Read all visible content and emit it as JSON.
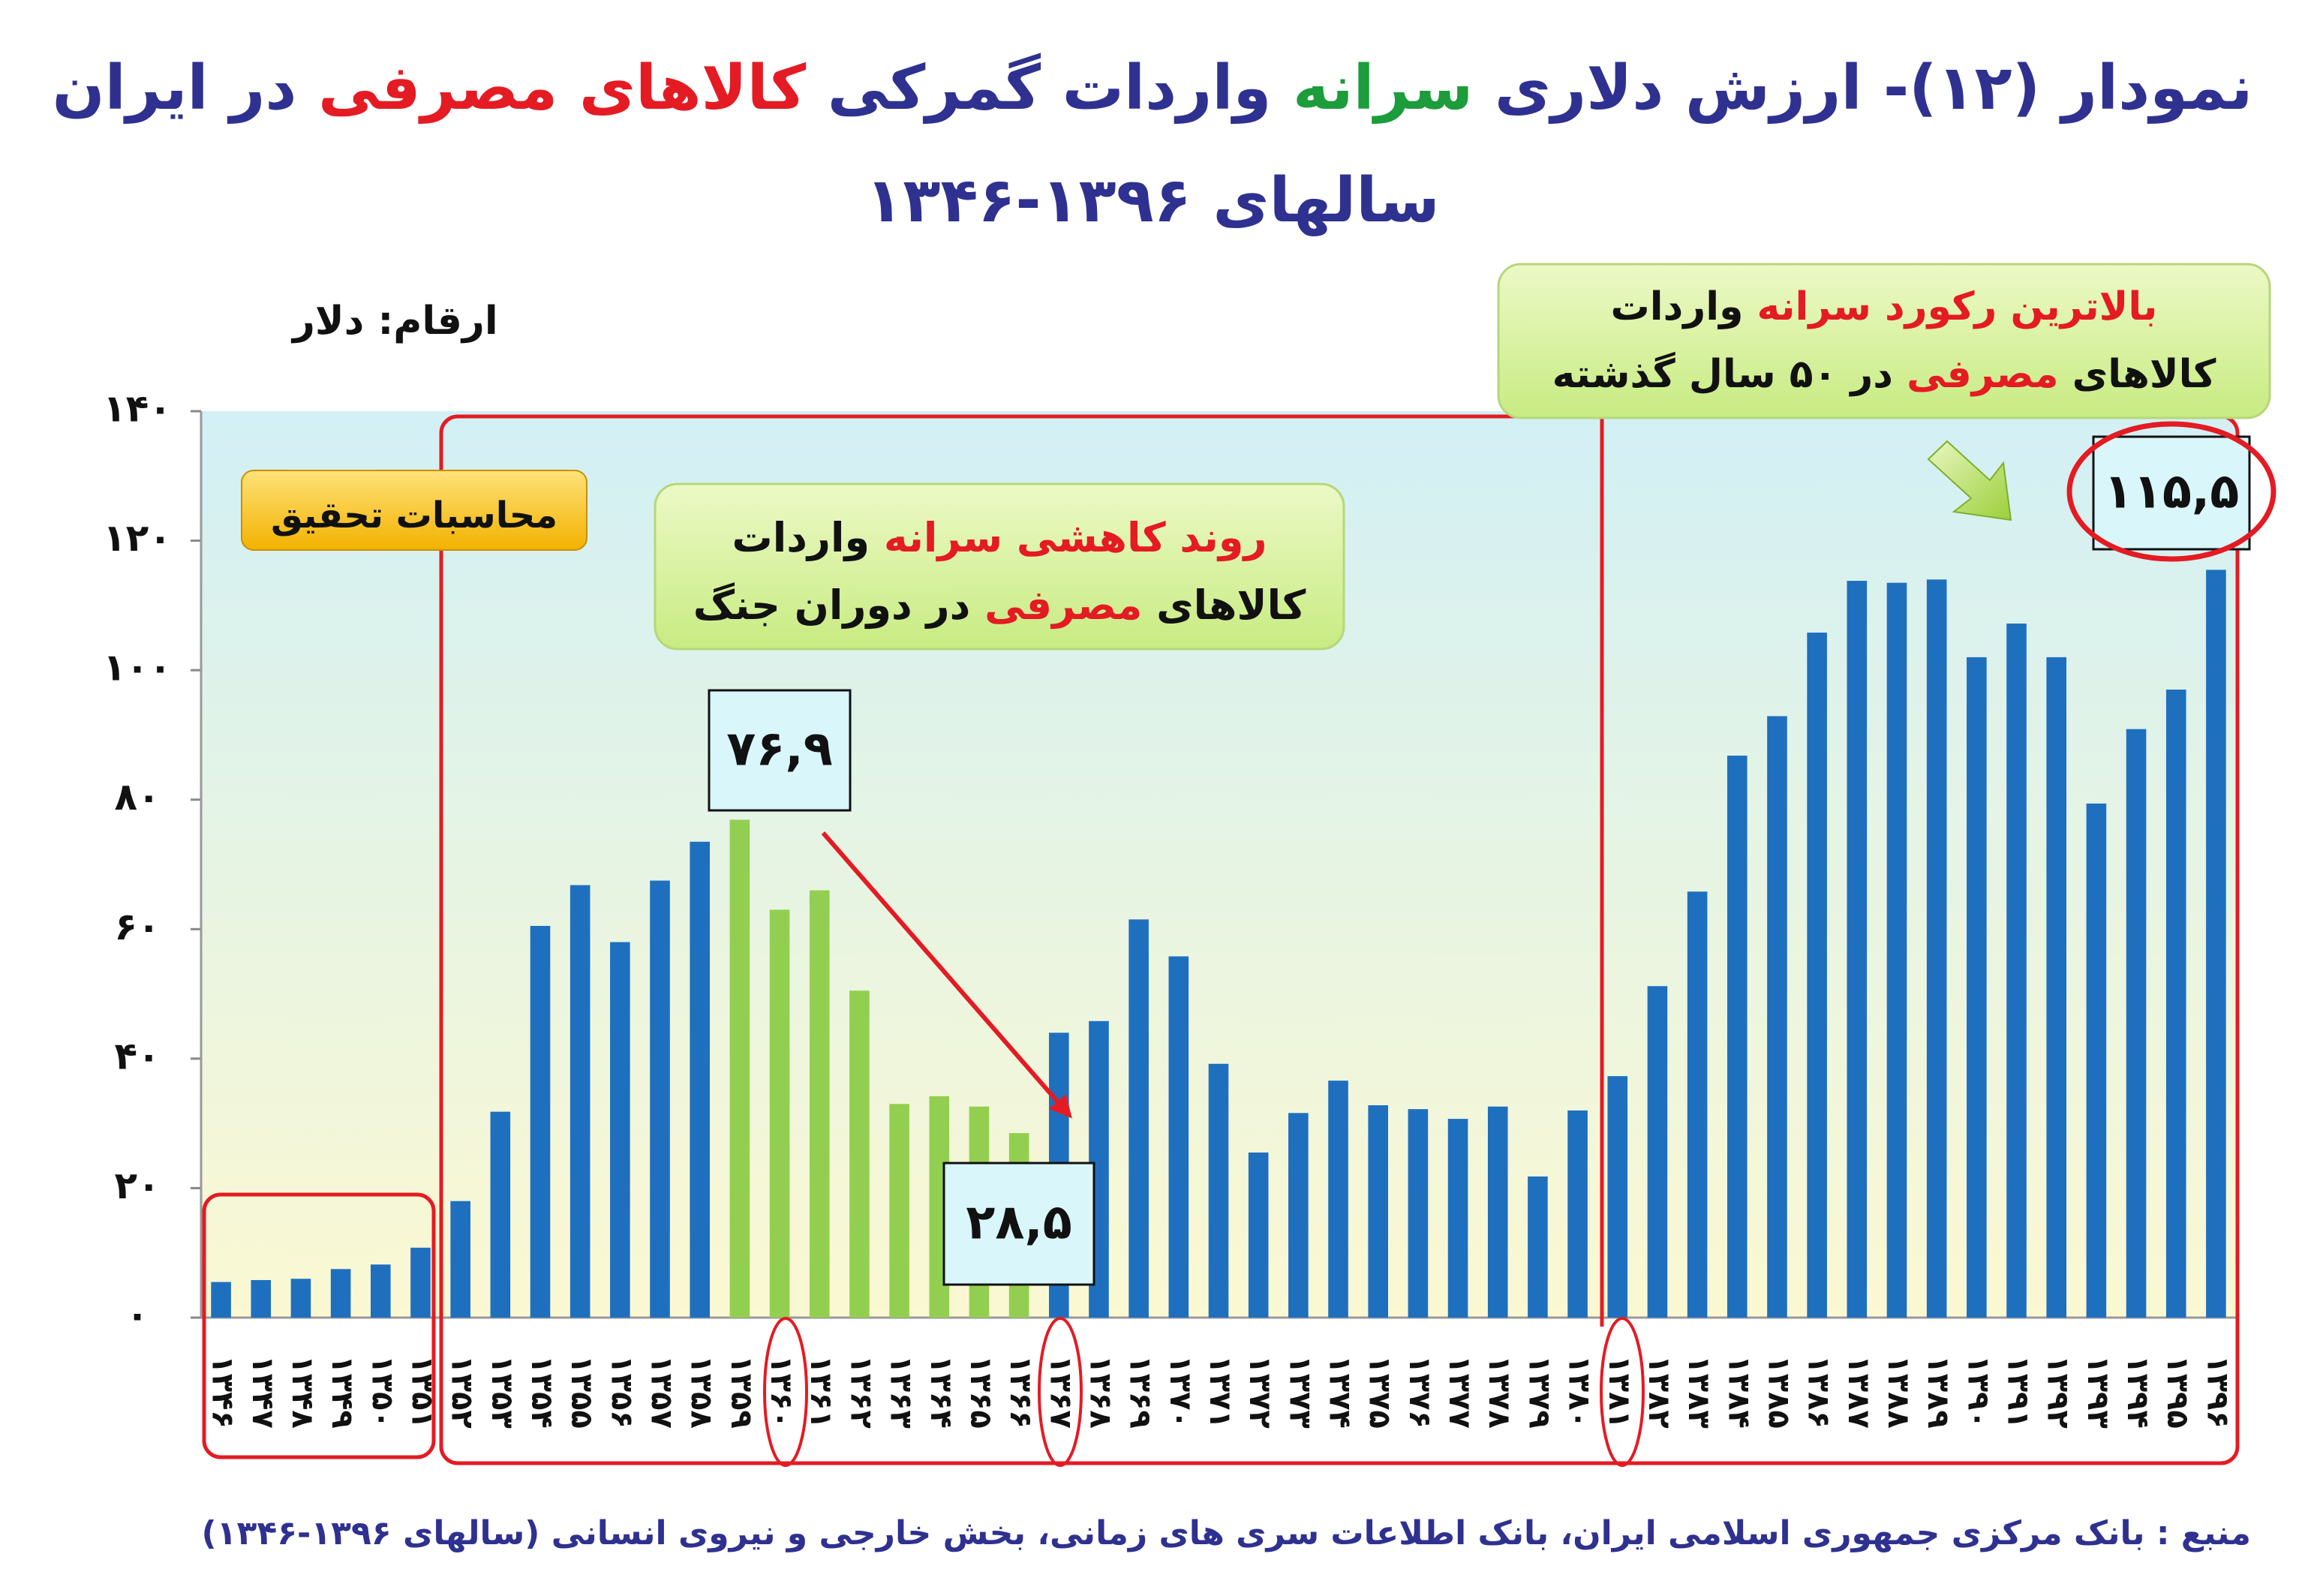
{
  "title": {
    "part1": "نمودار (۱۲)- ارزش دلاری ",
    "part2": "سرانه",
    "part3": " واردات گمرکی ",
    "part4": "کالاهای مصرفی",
    "part5": " در ایران",
    "line2": "سالهای ۱۳۹۶-۱۳۴۶"
  },
  "unit_label": "ارقام: دلار",
  "source": "منبع : بانک مرکزی جمهوری اسلامی ایران، بانک اطلاعات سری های زمانی، بخش خارجی و نیروی انسانی (سالهای ۱۳۹۶-۱۳۴۶)",
  "annotations": {
    "research_tag": "محاسبات تحقیق",
    "war_box": [
      [
        {
          "t": "روند کاهشی سرانه",
          "c": "#e41b23"
        },
        {
          "t": " واردات",
          "c": "#111111"
        }
      ],
      [
        {
          "t": "کالاهای ",
          "c": "#111111"
        },
        {
          "t": "مصرفی",
          "c": "#e41b23"
        },
        {
          "t": " در دوران جنگ",
          "c": "#111111"
        }
      ]
    ],
    "record_box": [
      [
        {
          "t": "بالاترین رکورد سرانه",
          "c": "#e41b23"
        },
        {
          "t": " واردات",
          "c": "#111111"
        }
      ],
      [
        {
          "t": "کالاهای ",
          "c": "#111111"
        },
        {
          "t": "مصرفی",
          "c": "#e41b23"
        },
        {
          "t": " در ۵۰ سال گذشته",
          "c": "#111111"
        }
      ]
    ],
    "label_peak": "۷۶,۹",
    "label_low": "۲۸,۵",
    "label_max": "۱۱۵,۵"
  },
  "colors": {
    "bar_blue": "#1f6fbf",
    "bar_green": "#92cf50",
    "highlight_red": "#e41b23",
    "title_blue": "#2f3190"
  },
  "chart_data": {
    "type": "bar",
    "xlabel": "",
    "ylabel": "",
    "ylim": [
      0,
      140
    ],
    "y_ticks": [
      "۰",
      "۲۰",
      "۴۰",
      "۶۰",
      "۸۰",
      "۱۰۰",
      "۱۲۰",
      "۱۴۰"
    ],
    "grid": false,
    "categories": [
      "۱۳۴۶",
      "۱۳۴۷",
      "۱۳۴۸",
      "۱۳۴۹",
      "۱۳۵۰",
      "۱۳۵۱",
      "۱۳۵۲",
      "۱۳۵۳",
      "۱۳۵۴",
      "۱۳۵۵",
      "۱۳۵۶",
      "۱۳۵۷",
      "۱۳۵۸",
      "۱۳۵۹",
      "۱۳۶۰",
      "۱۳۶۱",
      "۱۳۶۲",
      "۱۳۶۳",
      "۱۳۶۴",
      "۱۳۶۵",
      "۱۳۶۶",
      "۱۳۶۷",
      "۱۳۶۸",
      "۱۳۶۹",
      "۱۳۷۰",
      "۱۳۷۱",
      "۱۳۷۲",
      "۱۳۷۳",
      "۱۳۷۴",
      "۱۳۷۵",
      "۱۳۷۶",
      "۱۳۷۷",
      "۱۳۷۸",
      "۱۳۷۹",
      "۱۳۸۰",
      "۱۳۸۱",
      "۱۳۸۲",
      "۱۳۸۳",
      "۱۳۸۴",
      "۱۳۸۵",
      "۱۳۸۶",
      "۱۳۸۷",
      "۱۳۸۸",
      "۱۳۸۹",
      "۱۳۹۰",
      "۱۳۹۱",
      "۱۳۹۲",
      "۱۳۹۳",
      "۱۳۹۴",
      "۱۳۹۵",
      "۱۳۹۶"
    ],
    "values": [
      5.5,
      5.8,
      6.0,
      7.5,
      8.2,
      10.8,
      18.0,
      31.8,
      60.5,
      66.8,
      58.0,
      67.5,
      73.5,
      76.9,
      63.0,
      66.0,
      50.5,
      33.0,
      34.2,
      32.6,
      28.5,
      44.0,
      45.8,
      61.5,
      55.8,
      39.2,
      25.5,
      31.6,
      36.6,
      32.8,
      32.2,
      30.7,
      32.6,
      21.8,
      32.0,
      37.3,
      51.2,
      65.8,
      86.8,
      92.9,
      105.8,
      113.8,
      113.5,
      114.0,
      102.0,
      107.2,
      102.0,
      79.4,
      90.9,
      97.0,
      115.5
    ],
    "series_colors": [
      "blue",
      "blue",
      "blue",
      "blue",
      "blue",
      "blue",
      "blue",
      "blue",
      "blue",
      "blue",
      "blue",
      "blue",
      "blue",
      "green",
      "green",
      "green",
      "green",
      "green",
      "green",
      "green",
      "green",
      "blue",
      "blue",
      "blue",
      "blue",
      "blue",
      "blue",
      "blue",
      "blue",
      "blue",
      "blue",
      "blue",
      "blue",
      "blue",
      "blue",
      "blue",
      "blue",
      "blue",
      "blue",
      "blue",
      "blue",
      "blue",
      "blue",
      "blue",
      "blue",
      "blue",
      "blue",
      "blue",
      "blue",
      "blue",
      "blue"
    ]
  }
}
